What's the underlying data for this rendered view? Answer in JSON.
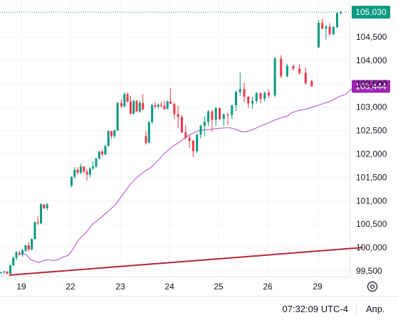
{
  "chart_data": {
    "type": "candlestick",
    "y_axis": {
      "ticks": [
        "99,500",
        "100,000",
        "100,500",
        "101,000",
        "101,500",
        "102,000",
        "102,500",
        "103,000",
        "103,500",
        "104,000",
        "104,500"
      ],
      "ylim": [
        99400,
        105250
      ]
    },
    "x_axis": {
      "ticks": [
        "19",
        "22",
        "23",
        "24",
        "25",
        "26",
        "29"
      ]
    },
    "last_price": {
      "label": "105,030",
      "value": 105030,
      "color": "#089981"
    },
    "ma_label": {
      "label": "103,444",
      "value": 103444,
      "color": "#9c27b0"
    },
    "candles": [
      [
        99460,
        99480,
        99440,
        99470
      ],
      [
        99470,
        99500,
        99440,
        99490
      ],
      [
        99480,
        99500,
        99430,
        99440
      ],
      [
        99440,
        99640,
        99430,
        99620
      ],
      [
        99620,
        99810,
        99600,
        99780
      ],
      [
        99780,
        99920,
        99730,
        99900
      ],
      [
        99880,
        99930,
        99830,
        99850
      ],
      [
        99850,
        99970,
        99800,
        99940
      ],
      [
        99930,
        100060,
        99910,
        100050
      ],
      [
        100050,
        100120,
        99920,
        99960
      ],
      [
        99960,
        100200,
        99940,
        100180
      ],
      [
        100180,
        100560,
        100170,
        100540
      ],
      [
        100540,
        100680,
        100480,
        100520
      ],
      [
        100520,
        100940,
        100500,
        100930
      ],
      [
        100920,
        100930,
        100820,
        100840
      ],
      [
        100840,
        100950,
        100790,
        100920
      ],
      [
        101320,
        101520,
        101290,
        101510
      ],
      [
        101510,
        101720,
        101480,
        101660
      ],
      [
        101660,
        101720,
        101560,
        101600
      ],
      [
        101600,
        101790,
        101570,
        101730
      ],
      [
        101730,
        101740,
        101600,
        101620
      ],
      [
        101620,
        101680,
        101430,
        101560
      ],
      [
        101560,
        101720,
        101500,
        101690
      ],
      [
        101690,
        101840,
        101660,
        101730
      ],
      [
        101730,
        101920,
        101700,
        101900
      ],
      [
        101900,
        102070,
        101880,
        102050
      ],
      [
        102050,
        102090,
        101940,
        101990
      ],
      [
        101990,
        102200,
        101970,
        102170
      ],
      [
        102170,
        102510,
        102160,
        102490
      ],
      [
        102490,
        102490,
        102330,
        102380
      ],
      [
        102380,
        102530,
        102340,
        102500
      ],
      [
        102500,
        103110,
        102490,
        103090
      ],
      [
        103090,
        103170,
        102980,
        103020
      ],
      [
        103020,
        103320,
        102990,
        103280
      ],
      [
        103280,
        103320,
        103100,
        103120
      ],
      [
        103120,
        103240,
        102840,
        102860
      ],
      [
        102860,
        103160,
        102840,
        103130
      ],
      [
        103130,
        103160,
        102890,
        102910
      ],
      [
        102910,
        103140,
        102880,
        103090
      ],
      [
        103090,
        103280,
        102940,
        102950
      ],
      [
        102380,
        102480,
        102200,
        102240
      ],
      [
        102240,
        102710,
        102230,
        102680
      ],
      [
        102680,
        103080,
        102640,
        103040
      ],
      [
        103040,
        103110,
        102970,
        103010
      ],
      [
        103010,
        103080,
        102960,
        103050
      ],
      [
        103050,
        103110,
        102990,
        103030
      ],
      [
        103030,
        103130,
        102940,
        102960
      ],
      [
        102960,
        103150,
        102960,
        103120
      ],
      [
        103120,
        103400,
        103080,
        103070
      ],
      [
        103070,
        103100,
        102750,
        102850
      ],
      [
        102850,
        103030,
        102560,
        102790
      ],
      [
        102790,
        102830,
        102450,
        102460
      ],
      [
        102460,
        102620,
        102310,
        102350
      ],
      [
        102350,
        102400,
        102130,
        102280
      ],
      [
        102280,
        102300,
        101930,
        102060
      ],
      [
        102060,
        102440,
        102020,
        102410
      ],
      [
        102410,
        102630,
        102330,
        102600
      ],
      [
        102600,
        102810,
        102370,
        102690
      ],
      [
        102690,
        102940,
        102600,
        102910
      ],
      [
        102910,
        102940,
        102480,
        102730
      ],
      [
        102730,
        103010,
        102600,
        102980
      ],
      [
        102980,
        102990,
        102720,
        102750
      ],
      [
        102750,
        102860,
        102600,
        102850
      ],
      [
        102850,
        102870,
        102620,
        102830
      ],
      [
        102830,
        103050,
        102740,
        103040
      ],
      [
        103040,
        103360,
        102920,
        103320
      ],
      [
        103320,
        103740,
        103240,
        103390
      ],
      [
        103390,
        103530,
        103110,
        103220
      ],
      [
        103220,
        103240,
        102980,
        103080
      ],
      [
        103080,
        103220,
        102960,
        103130
      ],
      [
        103130,
        103330,
        103080,
        103300
      ],
      [
        103300,
        103310,
        103080,
        103180
      ],
      [
        103180,
        103330,
        103120,
        103310
      ],
      [
        103310,
        103370,
        103200,
        103250
      ],
      [
        103250,
        104070,
        103220,
        104040
      ],
      [
        104040,
        104110,
        103620,
        103660
      ],
      [
        103660,
        103930,
        103640,
        103880
      ],
      [
        103880,
        103920,
        103780,
        103820
      ],
      [
        103820,
        103920,
        103690,
        103730
      ],
      [
        103730,
        103850,
        103480,
        103510
      ],
      [
        103560,
        103580,
        103430,
        103450
      ],
      [
        104280,
        104870,
        104260,
        104800
      ],
      [
        104800,
        104880,
        104660,
        104680
      ],
      [
        104680,
        104760,
        104450,
        104720
      ],
      [
        104720,
        104800,
        104520,
        104560
      ],
      [
        104560,
        104740,
        104530,
        104710
      ],
      [
        104710,
        105030,
        104690,
        105010
      ],
      [
        105010,
        105050,
        104990,
        105030
      ]
    ],
    "ma_line": [
      [
        0,
        99870
      ],
      [
        0.09,
        99860
      ],
      [
        0.19,
        99740
      ],
      [
        0.3,
        99700
      ],
      [
        0.35,
        99680
      ],
      [
        0.45,
        99720
      ],
      [
        0.55,
        99740
      ],
      [
        0.65,
        99720
      ],
      [
        0.75,
        99740
      ],
      [
        0.85,
        99800
      ],
      [
        0.95,
        99830
      ],
      [
        1.05,
        99960
      ],
      [
        1.15,
        100150
      ],
      [
        1.3,
        100300
      ],
      [
        1.45,
        100500
      ],
      [
        1.6,
        100620
      ],
      [
        1.75,
        100760
      ],
      [
        1.9,
        100900
      ],
      [
        2.05,
        101110
      ],
      [
        2.2,
        101330
      ],
      [
        2.35,
        101500
      ],
      [
        2.5,
        101620
      ],
      [
        2.65,
        101720
      ],
      [
        2.8,
        101880
      ],
      [
        2.9,
        102000
      ],
      [
        3.0,
        102090
      ],
      [
        3.1,
        102180
      ],
      [
        3.2,
        102240
      ],
      [
        3.35,
        102360
      ],
      [
        3.5,
        102450
      ],
      [
        3.65,
        102510
      ],
      [
        3.8,
        102520
      ],
      [
        3.95,
        102540
      ],
      [
        4.05,
        102550
      ],
      [
        4.15,
        102560
      ],
      [
        4.25,
        102560
      ],
      [
        4.35,
        102530
      ],
      [
        4.5,
        102470
      ],
      [
        4.6,
        102480
      ],
      [
        4.65,
        102500
      ],
      [
        4.75,
        102540
      ],
      [
        4.85,
        102590
      ],
      [
        5.0,
        102650
      ],
      [
        5.15,
        102720
      ],
      [
        5.3,
        102780
      ],
      [
        5.4,
        102800
      ],
      [
        5.5,
        102880
      ],
      [
        5.65,
        102930
      ],
      [
        5.8,
        102960
      ],
      [
        5.95,
        103010
      ],
      [
        6.05,
        103040
      ],
      [
        6.15,
        103080
      ],
      [
        6.25,
        103110
      ],
      [
        6.35,
        103160
      ],
      [
        6.5,
        103240
      ],
      [
        6.6,
        103270
      ],
      [
        6.7,
        103370
      ],
      [
        6.8,
        103444
      ]
    ],
    "trend_line": [
      [
        -0.25,
        99410
      ],
      [
        6.95,
        100000
      ]
    ]
  },
  "ui": {
    "clock": "07:32:09 UTC-4",
    "adj": "Апр.",
    "settings_icon": "gear-icon"
  }
}
